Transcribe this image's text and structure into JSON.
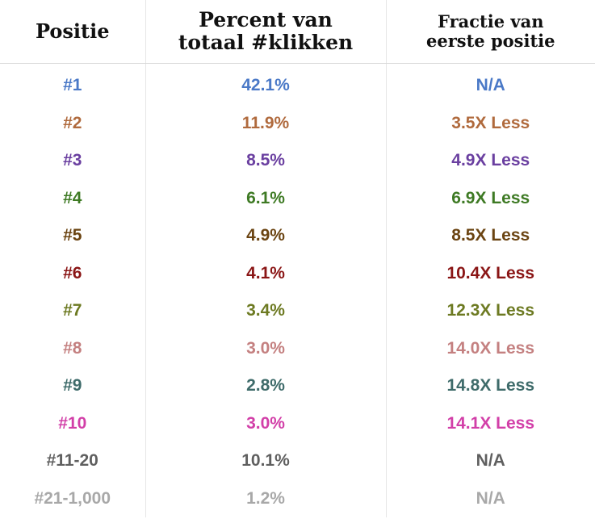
{
  "header": {
    "col1": "Positie",
    "col2_line1": "Percent van",
    "col2_line2": "totaal #klikken",
    "col3_line1": "Fractie van",
    "col3_line2": "eerste positie"
  },
  "rows": [
    {
      "position": "#1",
      "percent": "42.1%",
      "fraction": "N/A",
      "color": "#4a79c7"
    },
    {
      "position": "#2",
      "percent": "11.9%",
      "fraction": "3.5X Less",
      "color": "#b06a3d"
    },
    {
      "position": "#3",
      "percent": "8.5%",
      "fraction": "4.9X Less",
      "color": "#6a3fa0"
    },
    {
      "position": "#4",
      "percent": "6.1%",
      "fraction": "6.9X Less",
      "color": "#3e7a24"
    },
    {
      "position": "#5",
      "percent": "4.9%",
      "fraction": "8.5X Less",
      "color": "#6b4412"
    },
    {
      "position": "#6",
      "percent": "4.1%",
      "fraction": "10.4X Less",
      "color": "#8a1515"
    },
    {
      "position": "#7",
      "percent": "3.4%",
      "fraction": "12.3X Less",
      "color": "#6d7a22"
    },
    {
      "position": "#8",
      "percent": "3.0%",
      "fraction": "14.0X Less",
      "color": "#c48080"
    },
    {
      "position": "#9",
      "percent": "2.8%",
      "fraction": "14.8X Less",
      "color": "#3e6b6a"
    },
    {
      "position": "#10",
      "percent": "3.0%",
      "fraction": "14.1X Less",
      "color": "#d23fa8"
    },
    {
      "position": "#11-20",
      "percent": "10.1%",
      "fraction": "N/A",
      "color": "#5f5f5f"
    },
    {
      "position": "#21-1,000",
      "percent": "1.2%",
      "fraction": "N/A",
      "color": "#a8a8a8"
    }
  ]
}
